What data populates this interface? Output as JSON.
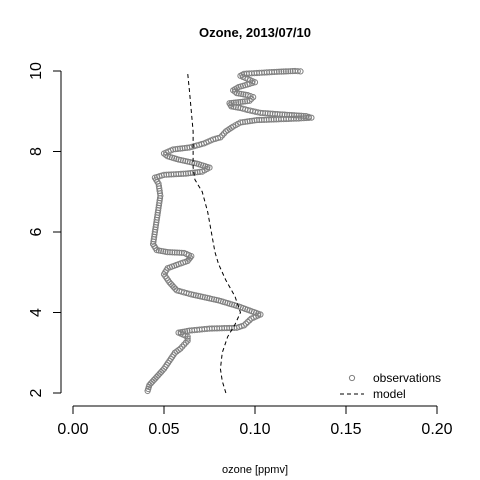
{
  "chart_data": {
    "type": "scatter",
    "title": "Ozone, 2013/07/10",
    "xlabel": "ozone [ppmv]",
    "ylabel": "",
    "xlim": [
      0.0,
      0.2
    ],
    "ylim": [
      2,
      10
    ],
    "x_ticks": [
      "0.00",
      "0.05",
      "0.10",
      "0.15",
      "0.20"
    ],
    "y_ticks": [
      "2",
      "4",
      "6",
      "8",
      "10"
    ],
    "grid": false,
    "legend_position": "bottom-right",
    "legend": [
      {
        "label": "observations",
        "marker": "open-circle"
      },
      {
        "label": "model",
        "marker": "dashed-line"
      }
    ],
    "colors": {
      "observations": "#808080",
      "model": "#000000"
    },
    "series": [
      {
        "name": "observations",
        "style": "points",
        "points": [
          [
            0.041,
            2.05
          ],
          [
            0.042,
            2.2
          ],
          [
            0.046,
            2.4
          ],
          [
            0.05,
            2.6
          ],
          [
            0.053,
            2.8
          ],
          [
            0.056,
            3.0
          ],
          [
            0.059,
            3.1
          ],
          [
            0.061,
            3.2
          ],
          [
            0.063,
            3.3
          ],
          [
            0.063,
            3.4
          ],
          [
            0.058,
            3.5
          ],
          [
            0.064,
            3.55
          ],
          [
            0.075,
            3.6
          ],
          [
            0.09,
            3.62
          ],
          [
            0.094,
            3.68
          ],
          [
            0.098,
            3.85
          ],
          [
            0.103,
            3.95
          ],
          [
            0.097,
            4.05
          ],
          [
            0.091,
            4.15
          ],
          [
            0.08,
            4.3
          ],
          [
            0.065,
            4.45
          ],
          [
            0.057,
            4.55
          ],
          [
            0.053,
            4.75
          ],
          [
            0.05,
            4.95
          ],
          [
            0.052,
            5.1
          ],
          [
            0.058,
            5.2
          ],
          [
            0.063,
            5.28
          ],
          [
            0.065,
            5.4
          ],
          [
            0.061,
            5.48
          ],
          [
            0.052,
            5.5
          ],
          [
            0.046,
            5.55
          ],
          [
            0.044,
            5.7
          ],
          [
            0.045,
            6.0
          ],
          [
            0.046,
            6.3
          ],
          [
            0.047,
            6.6
          ],
          [
            0.048,
            6.9
          ],
          [
            0.047,
            7.2
          ],
          [
            0.045,
            7.35
          ],
          [
            0.05,
            7.42
          ],
          [
            0.062,
            7.45
          ],
          [
            0.071,
            7.5
          ],
          [
            0.075,
            7.6
          ],
          [
            0.068,
            7.7
          ],
          [
            0.058,
            7.8
          ],
          [
            0.052,
            7.88
          ],
          [
            0.05,
            7.95
          ],
          [
            0.055,
            8.05
          ],
          [
            0.064,
            8.1
          ],
          [
            0.072,
            8.2
          ],
          [
            0.077,
            8.3
          ],
          [
            0.081,
            8.35
          ],
          [
            0.084,
            8.5
          ],
          [
            0.088,
            8.62
          ],
          [
            0.092,
            8.72
          ],
          [
            0.101,
            8.78
          ],
          [
            0.113,
            8.8
          ],
          [
            0.124,
            8.82
          ],
          [
            0.131,
            8.84
          ],
          [
            0.128,
            8.88
          ],
          [
            0.115,
            8.92
          ],
          [
            0.103,
            8.96
          ],
          [
            0.096,
            9.03
          ],
          [
            0.092,
            9.08
          ],
          [
            0.087,
            9.12
          ],
          [
            0.086,
            9.2
          ],
          [
            0.092,
            9.23
          ],
          [
            0.097,
            9.26
          ],
          [
            0.099,
            9.35
          ],
          [
            0.096,
            9.4
          ],
          [
            0.09,
            9.45
          ],
          [
            0.088,
            9.52
          ],
          [
            0.091,
            9.6
          ],
          [
            0.097,
            9.68
          ],
          [
            0.1,
            9.72
          ],
          [
            0.096,
            9.8
          ],
          [
            0.092,
            9.88
          ],
          [
            0.094,
            9.93
          ],
          [
            0.101,
            9.95
          ],
          [
            0.112,
            9.98
          ],
          [
            0.122,
            10.0
          ],
          [
            0.125,
            9.99
          ]
        ]
      },
      {
        "name": "model",
        "style": "dashed",
        "points": [
          [
            0.084,
            2.0
          ],
          [
            0.082,
            2.3
          ],
          [
            0.081,
            2.6
          ],
          [
            0.082,
            3.0
          ],
          [
            0.085,
            3.4
          ],
          [
            0.089,
            3.7
          ],
          [
            0.092,
            4.0
          ],
          [
            0.089,
            4.4
          ],
          [
            0.084,
            4.8
          ],
          [
            0.08,
            5.2
          ],
          [
            0.078,
            5.5
          ],
          [
            0.076,
            6.0
          ],
          [
            0.074,
            6.5
          ],
          [
            0.071,
            7.0
          ],
          [
            0.067,
            7.3
          ],
          [
            0.066,
            7.6
          ],
          [
            0.066,
            8.0
          ],
          [
            0.066,
            8.5
          ],
          [
            0.065,
            9.0
          ],
          [
            0.064,
            9.5
          ],
          [
            0.063,
            9.95
          ]
        ]
      }
    ]
  }
}
